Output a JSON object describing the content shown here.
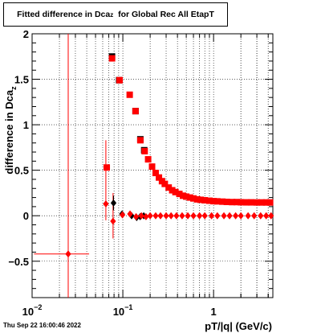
{
  "chart_data": {
    "type": "scatter",
    "title_main": "Fitted difference in Dca",
    "title_sub": "z",
    "title_rest": "for Global Rec All EtapT",
    "xlabel": "pT/|q| (GeV/c)",
    "ylabel_main": "difference in Dca",
    "ylabel_sub": "z",
    "xscale": "log",
    "xlim": [
      0.01,
      4.5
    ],
    "ylim": [
      -0.9,
      2.0
    ],
    "grid": true,
    "x_tick_labels": [
      {
        "value": 0.01,
        "base": "10",
        "exp": "−2"
      },
      {
        "value": 0.1,
        "base": "10",
        "exp": "−1"
      },
      {
        "value": 1,
        "base": "1",
        "exp": ""
      }
    ],
    "y_tick_labels": [
      "−0.5",
      "0",
      "0.5",
      "1",
      "1.5",
      "2"
    ],
    "series": [
      {
        "marker": "square",
        "color": "#000000",
        "points": [
          [
            0.076,
            1.75
          ],
          [
            0.091,
            1.49
          ],
          [
            0.138,
            1.15
          ],
          [
            0.156,
            0.84
          ],
          [
            0.172,
            0.72
          ]
        ]
      },
      {
        "marker": "diamond",
        "color": "#000000",
        "points": [
          [
            0.079,
            0.14
          ],
          [
            0.098,
            0.02
          ],
          [
            0.125,
            0.0
          ],
          [
            0.142,
            -0.02
          ],
          [
            0.155,
            -0.01
          ],
          [
            0.17,
            0.0
          ]
        ]
      },
      {
        "marker": "square",
        "color": "#ff0000",
        "points": [
          [
            0.0665,
            0.53
          ],
          [
            0.076,
            1.73
          ],
          [
            0.092,
            1.49
          ],
          [
            0.119,
            1.33
          ],
          [
            0.138,
            1.15
          ],
          [
            0.156,
            0.83
          ],
          [
            0.174,
            0.71
          ],
          [
            0.19,
            0.62
          ],
          [
            0.21,
            0.54
          ],
          [
            0.23,
            0.47
          ],
          [
            0.25,
            0.42
          ],
          [
            0.27,
            0.38
          ],
          [
            0.29,
            0.35
          ],
          [
            0.32,
            0.31
          ],
          [
            0.35,
            0.28
          ],
          [
            0.38,
            0.26
          ],
          [
            0.42,
            0.24
          ],
          [
            0.46,
            0.22
          ],
          [
            0.5,
            0.21
          ],
          [
            0.55,
            0.2
          ],
          [
            0.6,
            0.19
          ],
          [
            0.66,
            0.18
          ],
          [
            0.72,
            0.175
          ],
          [
            0.8,
            0.17
          ],
          [
            0.9,
            0.165
          ],
          [
            1.0,
            0.16
          ],
          [
            1.1,
            0.158
          ],
          [
            1.25,
            0.155
          ],
          [
            1.4,
            0.152
          ],
          [
            1.6,
            0.15
          ],
          [
            1.8,
            0.15
          ],
          [
            2.0,
            0.148
          ],
          [
            2.3,
            0.147
          ],
          [
            2.6,
            0.147
          ],
          [
            3.0,
            0.146
          ],
          [
            3.4,
            0.146
          ],
          [
            3.8,
            0.146
          ],
          [
            4.2,
            0.146
          ]
        ]
      },
      {
        "marker": "diamond",
        "color": "#ff0000",
        "points": [
          [
            0.025,
            -0.42
          ],
          [
            0.065,
            0.13
          ],
          [
            0.078,
            -0.06
          ],
          [
            0.099,
            0.01
          ],
          [
            0.12,
            0.02
          ],
          [
            0.14,
            -0.01
          ],
          [
            0.16,
            0.0
          ],
          [
            0.18,
            -0.01
          ],
          [
            0.2,
            0.0
          ],
          [
            0.23,
            0.0
          ],
          [
            0.26,
            0.0
          ],
          [
            0.3,
            0.0
          ],
          [
            0.34,
            0.0
          ],
          [
            0.39,
            0.0
          ],
          [
            0.45,
            0.0
          ],
          [
            0.52,
            0.0
          ],
          [
            0.6,
            0.0
          ],
          [
            0.7,
            0.0
          ],
          [
            0.8,
            0.0
          ],
          [
            0.95,
            0.0
          ],
          [
            1.1,
            0.0
          ],
          [
            1.3,
            0.0
          ],
          [
            1.5,
            0.0
          ],
          [
            1.75,
            0.0
          ],
          [
            2.0,
            0.0
          ],
          [
            2.4,
            0.0
          ],
          [
            2.8,
            0.0
          ],
          [
            3.3,
            0.0
          ],
          [
            3.8,
            0.0
          ],
          [
            4.3,
            0.0
          ]
        ]
      }
    ],
    "error_bars": [
      {
        "color": "#ff0000",
        "x": 0.025,
        "xmin": 0.0105,
        "xmax": 0.0425,
        "ymin": -0.9,
        "ymax": 2.0
      },
      {
        "color": "#ff0000",
        "x": 0.065,
        "xmin": 0.0645,
        "xmax": 0.0655,
        "ymin": -0.05,
        "ymax": 0.83
      },
      {
        "color": "#ff0000",
        "x": 0.078,
        "xmin": 0.0775,
        "xmax": 0.0785,
        "ymin": -0.25,
        "ymax": 0.25
      },
      {
        "color": "#000000",
        "x": 0.079,
        "xmin": 0.0785,
        "xmax": 0.0795,
        "ymin": 0.06,
        "ymax": 0.22
      }
    ]
  },
  "datestamp": "Thu Sep 22 16:00:46 2022"
}
